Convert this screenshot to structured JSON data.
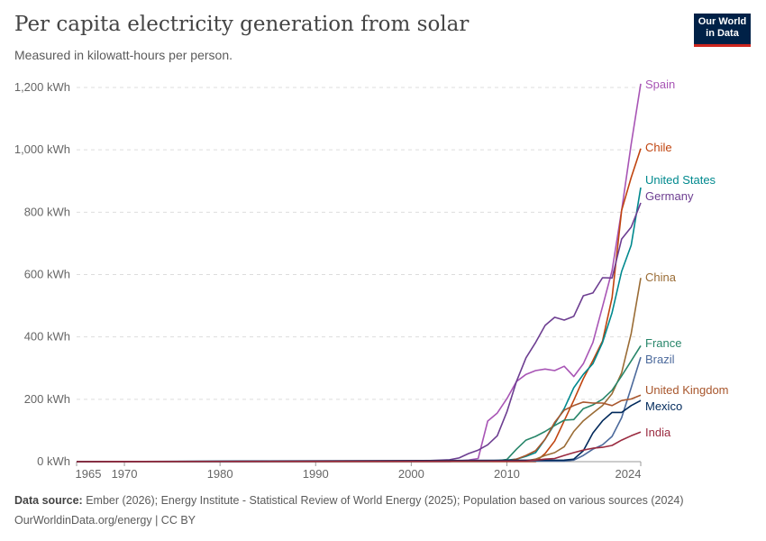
{
  "header": {
    "title": "Per capita electricity generation from solar",
    "subtitle": "Measured in kilowatt-hours per person.",
    "logo": "Our World in Data"
  },
  "footer": {
    "source_label": "Data source:",
    "source": "Ember (2026); Energy Institute - Statistical Review of World Energy (2025); Population based on various sources (2024)",
    "link": "OurWorldinData.org/energy | CC BY"
  },
  "chart_data": {
    "type": "line",
    "title": "Per capita electricity generation from solar",
    "xlim": [
      1965,
      2024
    ],
    "ylim": [
      0,
      1200
    ],
    "x_ticks": [
      1965,
      1970,
      1980,
      1990,
      2000,
      2010,
      2024
    ],
    "y_ticks": [
      {
        "v": 0,
        "label": "0 kWh"
      },
      {
        "v": 200,
        "label": "200 kWh"
      },
      {
        "v": 400,
        "label": "400 kWh"
      },
      {
        "v": 600,
        "label": "600 kWh"
      },
      {
        "v": 800,
        "label": "800 kWh"
      },
      {
        "v": 1000,
        "label": "1,000 kWh"
      },
      {
        "v": 1200,
        "label": "1,200 kWh"
      }
    ],
    "grid": "horizontal dashed",
    "legend": "line-end labels",
    "series": [
      {
        "name": "Spain",
        "color": "#a855b5",
        "points": [
          [
            1965,
            0
          ],
          [
            2004,
            0
          ],
          [
            2005,
            3
          ],
          [
            2006,
            5
          ],
          [
            2007,
            10
          ],
          [
            2008,
            130
          ],
          [
            2009,
            156
          ],
          [
            2010,
            202
          ],
          [
            2011,
            257
          ],
          [
            2012,
            280
          ],
          [
            2013,
            292
          ],
          [
            2014,
            297
          ],
          [
            2015,
            292
          ],
          [
            2016,
            306
          ],
          [
            2017,
            273
          ],
          [
            2018,
            314
          ],
          [
            2019,
            382
          ],
          [
            2020,
            497
          ],
          [
            2021,
            613
          ],
          [
            2022,
            806
          ],
          [
            2023,
            1018
          ],
          [
            2024,
            1212
          ]
        ]
      },
      {
        "name": "Chile",
        "color": "#c0440f",
        "points": [
          [
            1965,
            0
          ],
          [
            2013,
            0
          ],
          [
            2014,
            26
          ],
          [
            2015,
            66
          ],
          [
            2016,
            131
          ],
          [
            2017,
            197
          ],
          [
            2018,
            266
          ],
          [
            2019,
            324
          ],
          [
            2020,
            387
          ],
          [
            2021,
            526
          ],
          [
            2022,
            806
          ],
          [
            2023,
            911
          ],
          [
            2024,
            1004
          ]
        ]
      },
      {
        "name": "United States",
        "color": "#00898e",
        "points": [
          [
            1965,
            0
          ],
          [
            1994,
            2
          ],
          [
            1998,
            2
          ],
          [
            2000,
            1
          ],
          [
            2008,
            3
          ],
          [
            2010,
            5
          ],
          [
            2011,
            8
          ],
          [
            2012,
            17
          ],
          [
            2013,
            29
          ],
          [
            2014,
            72
          ],
          [
            2015,
            121
          ],
          [
            2016,
            170
          ],
          [
            2017,
            237
          ],
          [
            2018,
            280
          ],
          [
            2019,
            314
          ],
          [
            2020,
            382
          ],
          [
            2021,
            478
          ],
          [
            2022,
            610
          ],
          [
            2023,
            694
          ],
          [
            2024,
            879
          ]
        ]
      },
      {
        "name": "Germany",
        "color": "#6d3e91",
        "points": [
          [
            1965,
            0
          ],
          [
            2000,
            1
          ],
          [
            2004,
            6
          ],
          [
            2005,
            12
          ],
          [
            2006,
            26
          ],
          [
            2007,
            37
          ],
          [
            2008,
            54
          ],
          [
            2009,
            83
          ],
          [
            2010,
            160
          ],
          [
            2011,
            257
          ],
          [
            2012,
            333
          ],
          [
            2013,
            382
          ],
          [
            2014,
            437
          ],
          [
            2015,
            463
          ],
          [
            2016,
            454
          ],
          [
            2017,
            466
          ],
          [
            2018,
            532
          ],
          [
            2019,
            541
          ],
          [
            2020,
            590
          ],
          [
            2021,
            589
          ],
          [
            2022,
            714
          ],
          [
            2023,
            752
          ],
          [
            2024,
            830
          ]
        ]
      },
      {
        "name": "China",
        "color": "#9a6c35",
        "points": [
          [
            1965,
            0
          ],
          [
            2012,
            3
          ],
          [
            2013,
            8
          ],
          [
            2014,
            20
          ],
          [
            2015,
            29
          ],
          [
            2016,
            48
          ],
          [
            2017,
            97
          ],
          [
            2018,
            131
          ],
          [
            2019,
            156
          ],
          [
            2020,
            180
          ],
          [
            2021,
            218
          ],
          [
            2022,
            285
          ],
          [
            2023,
            411
          ],
          [
            2024,
            589
          ]
        ]
      },
      {
        "name": "France",
        "color": "#28866a",
        "points": [
          [
            1965,
            0
          ],
          [
            2008,
            1
          ],
          [
            2009,
            3
          ],
          [
            2010,
            7
          ],
          [
            2011,
            40
          ],
          [
            2012,
            69
          ],
          [
            2013,
            81
          ],
          [
            2014,
            97
          ],
          [
            2015,
            116
          ],
          [
            2016,
            133
          ],
          [
            2017,
            135
          ],
          [
            2018,
            170
          ],
          [
            2019,
            182
          ],
          [
            2020,
            200
          ],
          [
            2021,
            229
          ],
          [
            2022,
            275
          ],
          [
            2023,
            323
          ],
          [
            2024,
            372
          ]
        ]
      },
      {
        "name": "Brazil",
        "color": "#4c6a9c",
        "points": [
          [
            1965,
            0
          ],
          [
            2016,
            2
          ],
          [
            2017,
            5
          ],
          [
            2018,
            20
          ],
          [
            2019,
            40
          ],
          [
            2020,
            54
          ],
          [
            2021,
            81
          ],
          [
            2022,
            141
          ],
          [
            2023,
            237
          ],
          [
            2024,
            335
          ]
        ]
      },
      {
        "name": "United Kingdom",
        "color": "#a8562c",
        "points": [
          [
            1965,
            0
          ],
          [
            2010,
            2
          ],
          [
            2011,
            8
          ],
          [
            2012,
            20
          ],
          [
            2013,
            35
          ],
          [
            2014,
            72
          ],
          [
            2015,
            126
          ],
          [
            2016,
            165
          ],
          [
            2017,
            180
          ],
          [
            2018,
            191
          ],
          [
            2019,
            188
          ],
          [
            2020,
            188
          ],
          [
            2021,
            180
          ],
          [
            2022,
            196
          ],
          [
            2023,
            201
          ],
          [
            2024,
            213
          ]
        ]
      },
      {
        "name": "Mexico",
        "color": "#00295b",
        "points": [
          [
            1965,
            0
          ],
          [
            2016,
            5
          ],
          [
            2017,
            8
          ],
          [
            2018,
            35
          ],
          [
            2019,
            92
          ],
          [
            2020,
            131
          ],
          [
            2021,
            158
          ],
          [
            2022,
            158
          ],
          [
            2023,
            180
          ],
          [
            2024,
            196
          ]
        ]
      },
      {
        "name": "India",
        "color": "#9a2a3f",
        "points": [
          [
            1965,
            0
          ],
          [
            2012,
            2
          ],
          [
            2014,
            8
          ],
          [
            2015,
            10
          ],
          [
            2016,
            20
          ],
          [
            2017,
            29
          ],
          [
            2018,
            37
          ],
          [
            2019,
            43
          ],
          [
            2020,
            46
          ],
          [
            2021,
            52
          ],
          [
            2022,
            69
          ],
          [
            2023,
            83
          ],
          [
            2024,
            95
          ]
        ]
      }
    ]
  }
}
